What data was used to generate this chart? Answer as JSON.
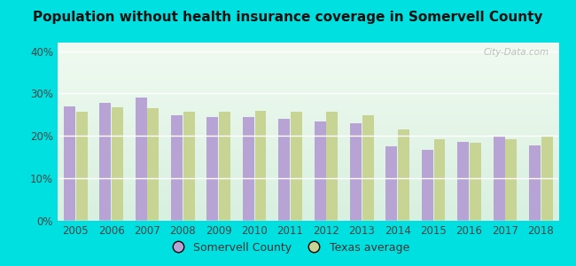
{
  "title": "Population without health insurance coverage in Somervell County",
  "years": [
    2005,
    2006,
    2007,
    2008,
    2009,
    2010,
    2011,
    2012,
    2013,
    2014,
    2015,
    2016,
    2017,
    2018
  ],
  "somervell": [
    0.27,
    0.278,
    0.29,
    0.248,
    0.245,
    0.245,
    0.24,
    0.235,
    0.23,
    0.175,
    0.168,
    0.185,
    0.198,
    0.178
  ],
  "texas": [
    0.258,
    0.267,
    0.265,
    0.256,
    0.258,
    0.26,
    0.257,
    0.256,
    0.249,
    0.215,
    0.193,
    0.183,
    0.193,
    0.2
  ],
  "somervell_color": "#b8a4d4",
  "texas_color": "#c8d494",
  "bg_top": "#f0faf0",
  "bg_bottom": "#d8f0e0",
  "outer_bg": "#00e0e0",
  "ylim": [
    0,
    0.42
  ],
  "yticks": [
    0.0,
    0.1,
    0.2,
    0.3,
    0.4
  ],
  "ytick_labels": [
    "0%",
    "10%",
    "20%",
    "30%",
    "40%"
  ],
  "legend_somervell": "Somervell County",
  "legend_texas": "Texas average",
  "watermark": "City-Data.com"
}
